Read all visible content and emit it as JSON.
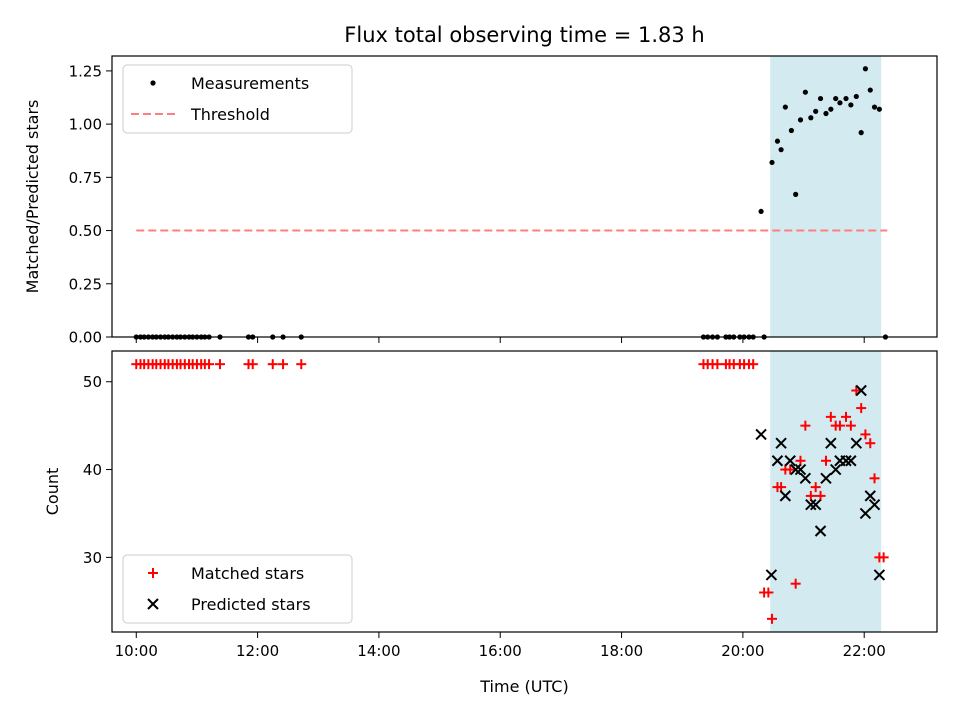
{
  "chart_data": {
    "title": "Flux total observing time = 1.83 h",
    "xlabel": "Time (UTC)",
    "x_unit": "hours UTC",
    "xlim": [
      9.6,
      23.2
    ],
    "x_ticks": [
      10,
      12,
      14,
      16,
      18,
      20,
      22
    ],
    "x_tick_labels": [
      "10:00",
      "12:00",
      "14:00",
      "16:00",
      "18:00",
      "20:00",
      "22:00"
    ],
    "shaded_span": {
      "x": [
        20.45,
        22.28
      ],
      "color": "#d3eaf1"
    },
    "panels": [
      {
        "type": "scatter",
        "ylabel": "Matched/Predicted stars",
        "ylim": [
          0,
          1.32
        ],
        "y_ticks": [
          0,
          0.25,
          0.5,
          0.75,
          1.0,
          1.25
        ],
        "y_tick_labels": [
          "0.00",
          "0.25",
          "0.50",
          "0.75",
          "1.00",
          "1.25"
        ],
        "legend": {
          "placement": "upper-left",
          "entries": [
            {
              "label": "Measurements",
              "marker": "dot",
              "color": "#000000"
            },
            {
              "label": "Threshold",
              "marker": "dashed-line",
              "color": "#ff7f7f"
            }
          ]
        },
        "threshold": {
          "y": 0.5,
          "x": [
            10.0,
            22.38
          ],
          "color": "#ff7f7f"
        },
        "series": [
          {
            "name": "Measurements",
            "color": "#000000",
            "x": [
              10.0,
              10.07,
              10.13,
              10.2,
              10.27,
              10.33,
              10.4,
              10.47,
              10.53,
              10.6,
              10.67,
              10.73,
              10.8,
              10.87,
              10.93,
              11.0,
              11.07,
              11.13,
              11.2,
              11.38,
              11.85,
              11.92,
              12.25,
              12.42,
              12.72,
              19.35,
              19.42,
              19.5,
              19.58,
              19.72,
              19.78,
              19.85,
              19.95,
              20.02,
              20.1,
              20.17,
              20.35,
              20.3,
              20.48,
              20.57,
              20.63,
              20.7,
              20.8,
              20.87,
              20.95,
              21.03,
              21.12,
              21.2,
              21.28,
              21.37,
              21.45,
              21.53,
              21.6,
              21.7,
              21.78,
              21.87,
              21.95,
              22.02,
              22.1,
              22.17,
              22.25,
              22.35
            ],
            "y": [
              0,
              0,
              0,
              0,
              0,
              0,
              0,
              0,
              0,
              0,
              0,
              0,
              0,
              0,
              0,
              0,
              0,
              0,
              0,
              0,
              0,
              0,
              0,
              0,
              0,
              0,
              0,
              0,
              0,
              0,
              0,
              0,
              0,
              0,
              0,
              0,
              0,
              0.59,
              0.82,
              0.92,
              0.88,
              1.08,
              0.97,
              0.67,
              1.02,
              1.15,
              1.03,
              1.06,
              1.12,
              1.05,
              1.07,
              1.12,
              1.1,
              1.12,
              1.09,
              1.13,
              0.96,
              1.26,
              1.16,
              1.08,
              1.07,
              0
            ]
          }
        ]
      },
      {
        "type": "scatter",
        "ylabel": "Count",
        "ylim": [
          21.5,
          53.5
        ],
        "y_ticks": [
          30,
          40,
          50
        ],
        "y_tick_labels": [
          "30",
          "40",
          "50"
        ],
        "legend": {
          "placement": "lower-left",
          "entries": [
            {
              "label": "Matched stars",
              "marker": "plus",
              "color": "#ff0000"
            },
            {
              "label": "Predicted stars",
              "marker": "x",
              "color": "#000000"
            }
          ]
        },
        "series": [
          {
            "name": "Matched stars",
            "marker": "plus",
            "color": "#ff0000",
            "x": [
              10.0,
              10.07,
              10.13,
              10.2,
              10.27,
              10.33,
              10.4,
              10.47,
              10.53,
              10.6,
              10.67,
              10.73,
              10.8,
              10.87,
              10.93,
              11.0,
              11.07,
              11.13,
              11.2,
              11.38,
              11.85,
              11.92,
              12.25,
              12.42,
              12.72,
              19.35,
              19.42,
              19.5,
              19.58,
              19.72,
              19.78,
              19.85,
              19.95,
              20.02,
              20.1,
              20.17,
              20.35,
              20.42,
              20.48,
              20.57,
              20.63,
              20.7,
              20.78,
              20.87,
              20.95,
              21.03,
              21.12,
              21.2,
              21.28,
              21.37,
              21.45,
              21.53,
              21.6,
              21.7,
              21.78,
              21.87,
              21.95,
              22.02,
              22.1,
              22.17,
              22.25,
              22.32
            ],
            "y": [
              52,
              52,
              52,
              52,
              52,
              52,
              52,
              52,
              52,
              52,
              52,
              52,
              52,
              52,
              52,
              52,
              52,
              52,
              52,
              52,
              52,
              52,
              52,
              52,
              52,
              52,
              52,
              52,
              52,
              52,
              52,
              52,
              52,
              52,
              52,
              52,
              26,
              26,
              23,
              38,
              38,
              40,
              40,
              27,
              41,
              45,
              37,
              38,
              37,
              41,
              46,
              45,
              45,
              46,
              45,
              49,
              47,
              44,
              43,
              39,
              30,
              30
            ]
          },
          {
            "name": "Predicted stars",
            "marker": "x",
            "color": "#000000",
            "x": [
              20.3,
              20.47,
              20.57,
              20.63,
              20.7,
              20.78,
              20.87,
              20.95,
              21.03,
              21.12,
              21.2,
              21.28,
              21.37,
              21.45,
              21.53,
              21.6,
              21.7,
              21.78,
              21.87,
              21.95,
              22.02,
              22.1,
              22.17,
              22.25
            ],
            "y": [
              44,
              28,
              41,
              43,
              37,
              41,
              40,
              40,
              39,
              36,
              36,
              33,
              39,
              43,
              40,
              41,
              41,
              41,
              43,
              49,
              35,
              37,
              36,
              28
            ]
          }
        ]
      }
    ]
  }
}
